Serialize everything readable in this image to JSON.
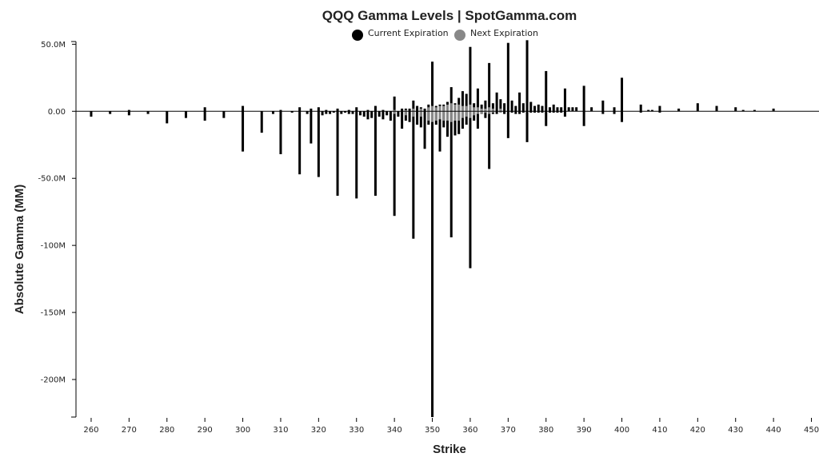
{
  "chart_data": {
    "type": "bar",
    "title": "QQQ Gamma Levels | SpotGamma.com",
    "xlabel": "Strike",
    "ylabel": "Absolute Gamma (MM)",
    "xlim": [
      256,
      452
    ],
    "ylim": [
      -228,
      52
    ],
    "legend_position": "top-center",
    "grid": false,
    "x_ticks": [
      {
        "value": 260,
        "label": "260"
      },
      {
        "value": 270,
        "label": "270"
      },
      {
        "value": 280,
        "label": "280"
      },
      {
        "value": 290,
        "label": "290"
      },
      {
        "value": 300,
        "label": "300"
      },
      {
        "value": 310,
        "label": "310"
      },
      {
        "value": 320,
        "label": "320"
      },
      {
        "value": 330,
        "label": "330"
      },
      {
        "value": 340,
        "label": "340"
      },
      {
        "value": 350,
        "label": "350"
      },
      {
        "value": 360,
        "label": "360"
      },
      {
        "value": 370,
        "label": "370"
      },
      {
        "value": 380,
        "label": "380"
      },
      {
        "value": 390,
        "label": "390"
      },
      {
        "value": 400,
        "label": "400"
      },
      {
        "value": 410,
        "label": "410"
      },
      {
        "value": 420,
        "label": "420"
      },
      {
        "value": 430,
        "label": "430"
      },
      {
        "value": 440,
        "label": "440"
      },
      {
        "value": 450,
        "label": "450"
      }
    ],
    "y_ticks": [
      {
        "value": 50,
        "label": "50.0M"
      },
      {
        "value": 0,
        "label": "0.00"
      },
      {
        "value": -50,
        "label": "-50.0M"
      },
      {
        "value": -100,
        "label": "-100M"
      },
      {
        "value": -150,
        "label": "-150M"
      },
      {
        "value": -200,
        "label": "-200M"
      }
    ],
    "series": [
      {
        "name": "Current Expiration",
        "color": "#000000",
        "points": [
          {
            "strike": 260,
            "call": 0,
            "put": -4
          },
          {
            "strike": 265,
            "call": 0,
            "put": -2
          },
          {
            "strike": 270,
            "call": 1,
            "put": -3
          },
          {
            "strike": 275,
            "call": 0,
            "put": -2
          },
          {
            "strike": 280,
            "call": 0,
            "put": -9
          },
          {
            "strike": 285,
            "call": 0,
            "put": -5
          },
          {
            "strike": 290,
            "call": 3,
            "put": -7
          },
          {
            "strike": 295,
            "call": 0,
            "put": -5
          },
          {
            "strike": 300,
            "call": 4,
            "put": -30
          },
          {
            "strike": 305,
            "call": 0,
            "put": -16
          },
          {
            "strike": 308,
            "call": 0,
            "put": -2
          },
          {
            "strike": 310,
            "call": 1,
            "put": -32
          },
          {
            "strike": 313,
            "call": 0,
            "put": -1
          },
          {
            "strike": 315,
            "call": 3,
            "put": -47
          },
          {
            "strike": 317,
            "call": 0,
            "put": -2
          },
          {
            "strike": 318,
            "call": 2,
            "put": -24
          },
          {
            "strike": 320,
            "call": 3,
            "put": -49
          },
          {
            "strike": 321,
            "call": 0,
            "put": -3
          },
          {
            "strike": 322,
            "call": 1,
            "put": -2
          },
          {
            "strike": 323,
            "call": 0,
            "put": -2
          },
          {
            "strike": 324,
            "call": 0,
            "put": -1
          },
          {
            "strike": 325,
            "call": 2,
            "put": -63
          },
          {
            "strike": 326,
            "call": 0,
            "put": -2
          },
          {
            "strike": 327,
            "call": 0,
            "put": -1
          },
          {
            "strike": 328,
            "call": 1,
            "put": -2
          },
          {
            "strike": 329,
            "call": 0,
            "put": -2
          },
          {
            "strike": 330,
            "call": 3,
            "put": -65
          },
          {
            "strike": 331,
            "call": 0,
            "put": -3
          },
          {
            "strike": 332,
            "call": 0,
            "put": -4
          },
          {
            "strike": 333,
            "call": 1,
            "put": -6
          },
          {
            "strike": 334,
            "call": 0,
            "put": -5
          },
          {
            "strike": 335,
            "call": 4,
            "put": -63
          },
          {
            "strike": 336,
            "call": 0,
            "put": -4
          },
          {
            "strike": 337,
            "call": 1,
            "put": -6
          },
          {
            "strike": 338,
            "call": 0,
            "put": -3
          },
          {
            "strike": 339,
            "call": 0,
            "put": -7
          },
          {
            "strike": 340,
            "call": 11,
            "put": -78
          },
          {
            "strike": 341,
            "call": 0,
            "put": -4
          },
          {
            "strike": 342,
            "call": 2,
            "put": -13
          },
          {
            "strike": 343,
            "call": 2,
            "put": -7
          },
          {
            "strike": 344,
            "call": 2,
            "put": -8
          },
          {
            "strike": 345,
            "call": 8,
            "put": -95
          },
          {
            "strike": 346,
            "call": 4,
            "put": -10
          },
          {
            "strike": 347,
            "call": 3,
            "put": -12
          },
          {
            "strike": 348,
            "call": 2,
            "put": -28
          },
          {
            "strike": 349,
            "call": 5,
            "put": -10
          },
          {
            "strike": 350,
            "call": 37,
            "put": -228
          },
          {
            "strike": 351,
            "call": 4,
            "put": -10
          },
          {
            "strike": 352,
            "call": 5,
            "put": -30
          },
          {
            "strike": 353,
            "call": 5,
            "put": -12
          },
          {
            "strike": 354,
            "call": 7,
            "put": -19
          },
          {
            "strike": 355,
            "call": 18,
            "put": -94
          },
          {
            "strike": 356,
            "call": 6,
            "put": -18
          },
          {
            "strike": 357,
            "call": 10,
            "put": -17
          },
          {
            "strike": 358,
            "call": 15,
            "put": -13
          },
          {
            "strike": 359,
            "call": 13,
            "put": -10
          },
          {
            "strike": 360,
            "call": 48,
            "put": -117
          },
          {
            "strike": 361,
            "call": 6,
            "put": -7
          },
          {
            "strike": 362,
            "call": 17,
            "put": -13
          },
          {
            "strike": 363,
            "call": 5,
            "put": -2
          },
          {
            "strike": 364,
            "call": 8,
            "put": -5
          },
          {
            "strike": 365,
            "call": 36,
            "put": -43
          },
          {
            "strike": 366,
            "call": 6,
            "put": -2
          },
          {
            "strike": 367,
            "call": 14,
            "put": -2
          },
          {
            "strike": 368,
            "call": 9,
            "put": -1
          },
          {
            "strike": 369,
            "call": 6,
            "put": -2
          },
          {
            "strike": 370,
            "call": 51,
            "put": -20
          },
          {
            "strike": 371,
            "call": 8,
            "put": -1
          },
          {
            "strike": 372,
            "call": 4,
            "put": -2
          },
          {
            "strike": 373,
            "call": 14,
            "put": -2
          },
          {
            "strike": 374,
            "call": 6,
            "put": -1
          },
          {
            "strike": 375,
            "call": 53,
            "put": -23
          },
          {
            "strike": 376,
            "call": 7,
            "put": -1
          },
          {
            "strike": 377,
            "call": 4,
            "put": -1
          },
          {
            "strike": 378,
            "call": 5,
            "put": -1
          },
          {
            "strike": 379,
            "call": 4,
            "put": -1
          },
          {
            "strike": 380,
            "call": 30,
            "put": -11
          },
          {
            "strike": 381,
            "call": 3,
            "put": -1
          },
          {
            "strike": 382,
            "call": 5,
            "put": -1
          },
          {
            "strike": 383,
            "call": 3,
            "put": -1
          },
          {
            "strike": 384,
            "call": 3,
            "put": -1
          },
          {
            "strike": 385,
            "call": 17,
            "put": -4
          },
          {
            "strike": 386,
            "call": 3,
            "put": 0
          },
          {
            "strike": 387,
            "call": 3,
            "put": 0
          },
          {
            "strike": 388,
            "call": 3,
            "put": 0
          },
          {
            "strike": 390,
            "call": 19,
            "put": -11
          },
          {
            "strike": 392,
            "call": 3,
            "put": 0
          },
          {
            "strike": 395,
            "call": 8,
            "put": -2
          },
          {
            "strike": 398,
            "call": 3,
            "put": -2
          },
          {
            "strike": 400,
            "call": 25,
            "put": -8
          },
          {
            "strike": 405,
            "call": 5,
            "put": -1
          },
          {
            "strike": 407,
            "call": 1,
            "put": 0
          },
          {
            "strike": 408,
            "call": 1,
            "put": 0
          },
          {
            "strike": 410,
            "call": 4,
            "put": -1
          },
          {
            "strike": 415,
            "call": 2,
            "put": 0
          },
          {
            "strike": 420,
            "call": 6,
            "put": 0
          },
          {
            "strike": 425,
            "call": 4,
            "put": 0
          },
          {
            "strike": 430,
            "call": 3,
            "put": 0
          },
          {
            "strike": 432,
            "call": 1,
            "put": 0
          },
          {
            "strike": 435,
            "call": 1,
            "put": 0
          },
          {
            "strike": 440,
            "call": 2,
            "put": 0
          }
        ]
      },
      {
        "name": "Next Expiration",
        "color": "#888888",
        "points": [
          {
            "strike": 340,
            "call": 1,
            "put": -2
          },
          {
            "strike": 343,
            "call": 1,
            "put": -3
          },
          {
            "strike": 345,
            "call": 2,
            "put": -4
          },
          {
            "strike": 347,
            "call": 2,
            "put": -4
          },
          {
            "strike": 349,
            "call": 3,
            "put": -7
          },
          {
            "strike": 350,
            "call": 4,
            "put": -8
          },
          {
            "strike": 351,
            "call": 3,
            "put": -7
          },
          {
            "strike": 352,
            "call": 4,
            "put": -6
          },
          {
            "strike": 353,
            "call": 4,
            "put": -7
          },
          {
            "strike": 354,
            "call": 5,
            "put": -7
          },
          {
            "strike": 355,
            "call": 6,
            "put": -8
          },
          {
            "strike": 356,
            "call": 5,
            "put": -7
          },
          {
            "strike": 357,
            "call": 5,
            "put": -7
          },
          {
            "strike": 358,
            "call": 4,
            "put": -5
          },
          {
            "strike": 359,
            "call": 4,
            "put": -4
          },
          {
            "strike": 360,
            "call": 5,
            "put": -5
          },
          {
            "strike": 361,
            "call": 3,
            "put": -3
          },
          {
            "strike": 362,
            "call": 3,
            "put": -2
          },
          {
            "strike": 363,
            "call": 2,
            "put": -2
          },
          {
            "strike": 364,
            "call": 2,
            "put": -1
          },
          {
            "strike": 365,
            "call": 3,
            "put": -2
          },
          {
            "strike": 366,
            "call": 2,
            "put": -1
          },
          {
            "strike": 368,
            "call": 2,
            "put": -1
          }
        ]
      }
    ]
  }
}
